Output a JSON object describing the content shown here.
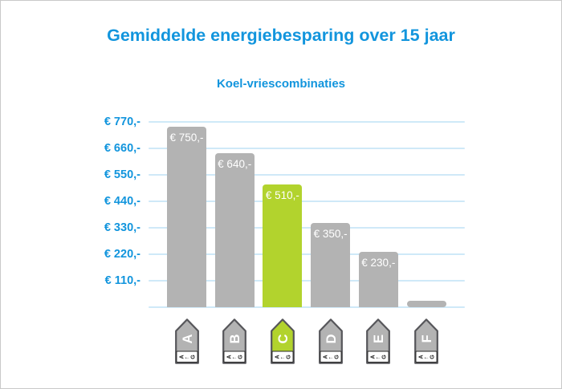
{
  "chart_data": {
    "type": "bar",
    "title": "Gemiddelde energiebesparing over 15 jaar",
    "subtitle": "Koel-vriescombinaties",
    "categories": [
      "A",
      "B",
      "C",
      "D",
      "E",
      "F"
    ],
    "values": [
      750,
      640,
      510,
      350,
      230,
      25
    ],
    "bar_labels": [
      "€ 750,-",
      "€ 640,-",
      "€ 510,-",
      "€ 350,-",
      "€ 230,-",
      ""
    ],
    "highlighted_category": "C",
    "y_ticks": [
      "€ 770,-",
      "€ 660,-",
      "€ 550,-",
      "€ 440,-",
      "€ 330,-",
      "€ 220,-",
      "€ 110,-"
    ],
    "y_tick_values": [
      770,
      660,
      550,
      440,
      330,
      220,
      110
    ],
    "ylim": [
      0,
      770
    ],
    "xlabel": "",
    "ylabel": "",
    "grid": true,
    "legend": false,
    "x_axis_icons": {
      "description": "EU energy-class arrow tags pointing up, one per bar",
      "scale_badge": {
        "first": "A",
        "arrow": "←",
        "last": "G"
      }
    },
    "colors": {
      "accent_blue": "#1295dd",
      "bar": "#b3b3b3",
      "highlight": "#b2d32d",
      "gridline": "#cfe9f8",
      "bar_label_text": "#ffffff",
      "icon_border": "#56565a",
      "icon_badge_text": "#222222",
      "frame_border": "#c9c9c9",
      "background": "#ffffff"
    }
  }
}
